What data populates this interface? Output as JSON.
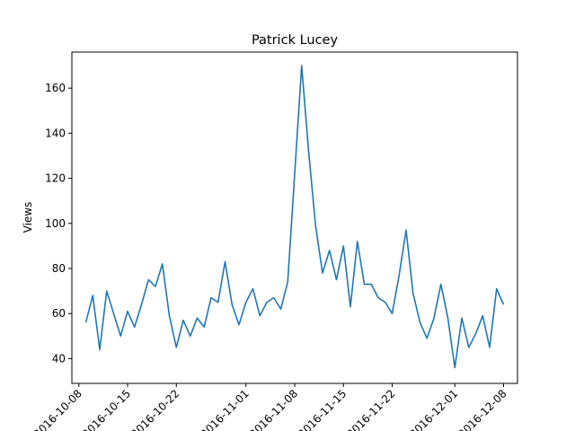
{
  "chart_data": {
    "type": "line",
    "title": "Patrick Lucey",
    "xlabel": "",
    "ylabel": "Views",
    "x_tick_labels": [
      "2016-10-08",
      "2016-10-15",
      "2016-10-22",
      "2016-11-01",
      "2016-11-08",
      "2016-11-15",
      "2016-11-22",
      "2016-12-01",
      "2016-12-08"
    ],
    "y_ticks": [
      40,
      60,
      80,
      100,
      120,
      140,
      160
    ],
    "ylim": [
      29,
      176
    ],
    "xlim": [
      "2016-10-07",
      "2016-12-10"
    ],
    "grid": false,
    "series": [
      {
        "color": "#1f77b4",
        "x": [
          "2016-10-09",
          "2016-10-10",
          "2016-10-11",
          "2016-10-12",
          "2016-10-13",
          "2016-10-14",
          "2016-10-15",
          "2016-10-16",
          "2016-10-17",
          "2016-10-18",
          "2016-10-19",
          "2016-10-20",
          "2016-10-21",
          "2016-10-22",
          "2016-10-23",
          "2016-10-24",
          "2016-10-25",
          "2016-10-26",
          "2016-10-27",
          "2016-10-28",
          "2016-10-29",
          "2016-10-30",
          "2016-10-31",
          "2016-11-01",
          "2016-11-02",
          "2016-11-03",
          "2016-11-04",
          "2016-11-05",
          "2016-11-06",
          "2016-11-07",
          "2016-11-08",
          "2016-11-09",
          "2016-11-10",
          "2016-11-11",
          "2016-11-12",
          "2016-11-13",
          "2016-11-14",
          "2016-11-15",
          "2016-11-16",
          "2016-11-17",
          "2016-11-18",
          "2016-11-19",
          "2016-11-20",
          "2016-11-21",
          "2016-11-22",
          "2016-11-23",
          "2016-11-24",
          "2016-11-25",
          "2016-11-26",
          "2016-11-27",
          "2016-11-28",
          "2016-11-29",
          "2016-11-30",
          "2016-12-01",
          "2016-12-02",
          "2016-12-03",
          "2016-12-04",
          "2016-12-05",
          "2016-12-06",
          "2016-12-07",
          "2016-12-08"
        ],
        "values": [
          56,
          68,
          44,
          70,
          60,
          50,
          61,
          54,
          64,
          75,
          72,
          82,
          59,
          45,
          57,
          50,
          58,
          54,
          67,
          65,
          83,
          64,
          55,
          65,
          71,
          59,
          65,
          67,
          62,
          74,
          122,
          170,
          132,
          99,
          78,
          88,
          75,
          90,
          63,
          92,
          73,
          73,
          67,
          65,
          60,
          77,
          97,
          69,
          56,
          49,
          58,
          73,
          58,
          36,
          58,
          45,
          51,
          59,
          45,
          71,
          64
        ]
      }
    ]
  }
}
